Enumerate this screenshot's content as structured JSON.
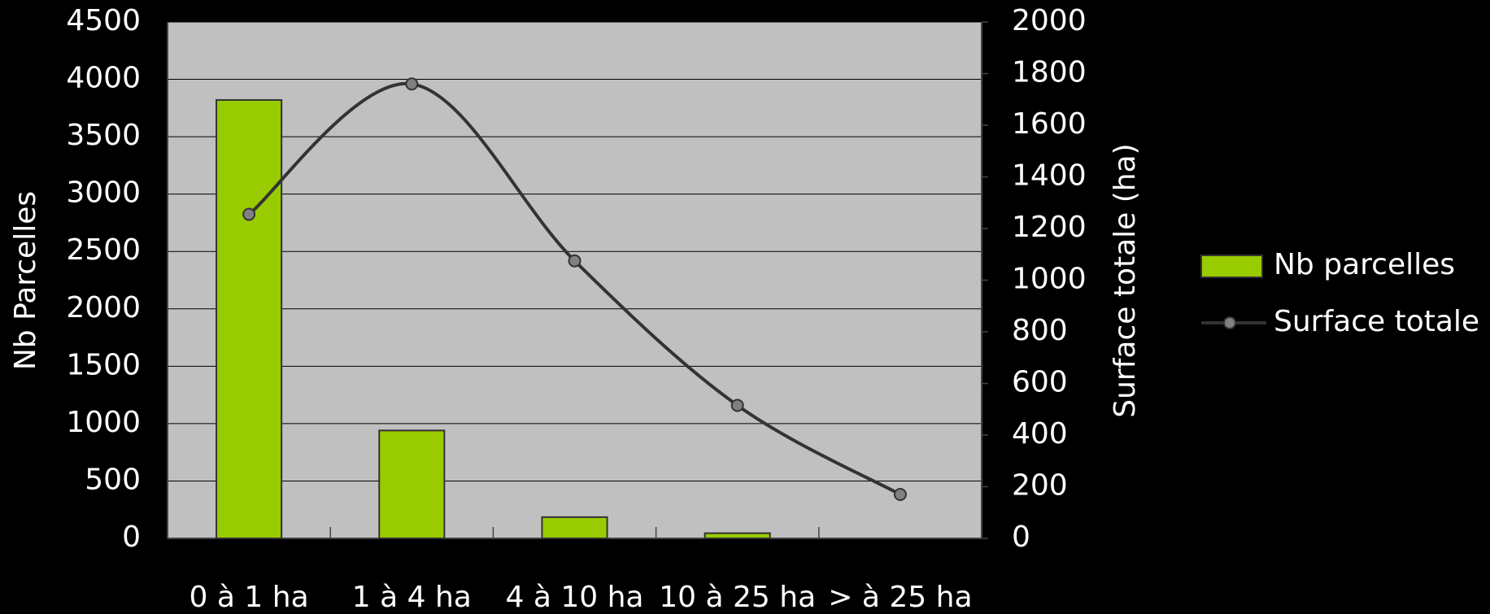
{
  "chart_data": {
    "type": "bar-line",
    "categories": [
      "0 à 1 ha",
      "1 à 4 ha",
      "4 à 10 ha",
      "10 à 25 ha",
      "> à 25 ha"
    ],
    "series": [
      {
        "name": "Nb parcelles",
        "type": "bar",
        "color": "#99cc00",
        "values": [
          3820,
          940,
          185,
          45,
          0
        ]
      },
      {
        "name": "Surface totale",
        "type": "line",
        "axis": "y2",
        "color": "#333333",
        "marker_color": "#808080",
        "values": [
          1255,
          1760,
          1075,
          515,
          170
        ]
      }
    ],
    "y_label": "Nb Parcelles",
    "y2_label": "Surface totale (ha)",
    "ylim": [
      0,
      4500
    ],
    "yticks": [
      0,
      500,
      1000,
      1500,
      2000,
      2500,
      3000,
      3500,
      4000,
      4500
    ],
    "y2lim": [
      0,
      2000
    ],
    "y2ticks": [
      0,
      200,
      400,
      600,
      800,
      1000,
      1200,
      1400,
      1600,
      1800,
      2000
    ],
    "grid": true,
    "legend": "right"
  }
}
